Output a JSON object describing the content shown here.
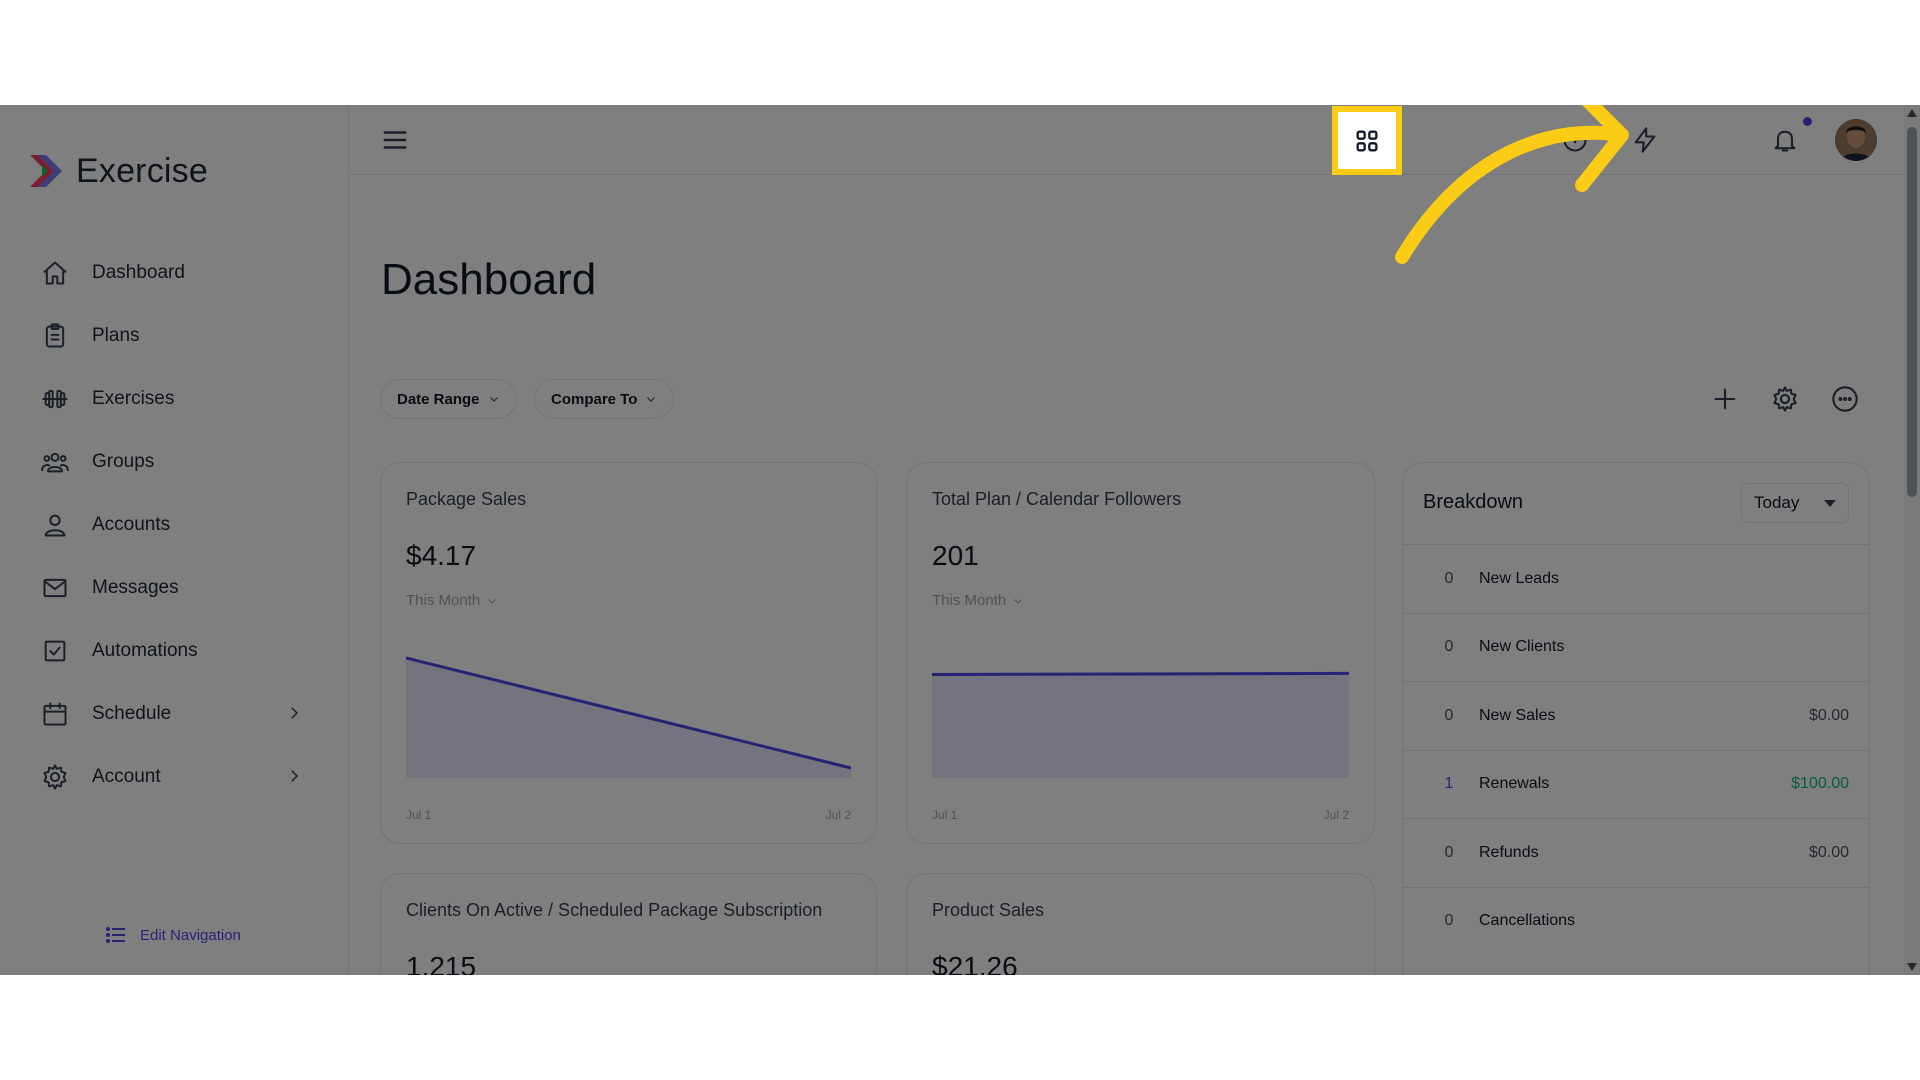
{
  "brand": {
    "name": "Exercise",
    "logo_icon": "exercise-logo-icon",
    "logo_colors": [
      "#f43f5e",
      "#6366f1",
      "#22c55e"
    ]
  },
  "sidebar": {
    "items": [
      {
        "label": "Dashboard",
        "icon": "home-icon"
      },
      {
        "label": "Plans",
        "icon": "clipboard-icon"
      },
      {
        "label": "Exercises",
        "icon": "dumbbell-icon"
      },
      {
        "label": "Groups",
        "icon": "users-icon"
      },
      {
        "label": "Accounts",
        "icon": "user-icon"
      },
      {
        "label": "Messages",
        "icon": "mail-icon"
      },
      {
        "label": "Automations",
        "icon": "checkbox-icon"
      },
      {
        "label": "Schedule",
        "icon": "calendar-icon"
      },
      {
        "label": "Account",
        "icon": "gear-icon"
      }
    ],
    "edit_navigation": "Edit Navigation"
  },
  "topbar": {
    "icons": [
      "menu-icon",
      "help-icon",
      "bolt-icon",
      "apps-grid-icon",
      "bell-icon",
      "avatar"
    ]
  },
  "page": {
    "title": "Dashboard"
  },
  "filters": {
    "date_range": "Date Range",
    "compare_to": "Compare To"
  },
  "cards": [
    {
      "title": "Package Sales",
      "value": "$4.17",
      "period": "This Month",
      "x_start": "Jul 1",
      "x_end": "Jul 2",
      "trend": [
        1.0,
        0.0
      ]
    },
    {
      "title": "Total Plan / Calendar Followers",
      "value": "201",
      "period": "This Month",
      "x_start": "Jul 1",
      "x_end": "Jul 2",
      "trend": [
        0.85,
        0.86
      ]
    },
    {
      "title": "Clients On Active / Scheduled Package Subscription",
      "value": "1,215"
    },
    {
      "title": "Product Sales",
      "value": "$21.26"
    }
  ],
  "breakdown": {
    "title": "Breakdown",
    "period": "Today",
    "rows": [
      {
        "count": "0",
        "label": "New Leads",
        "amount": ""
      },
      {
        "count": "0",
        "label": "New Clients",
        "amount": ""
      },
      {
        "count": "0",
        "label": "New Sales",
        "amount": "$0.00"
      },
      {
        "count": "1",
        "label": "Renewals",
        "amount": "$100.00"
      },
      {
        "count": "0",
        "label": "Refunds",
        "amount": "$0.00"
      },
      {
        "count": "0",
        "label": "Cancellations",
        "amount": ""
      }
    ]
  },
  "colors": {
    "accent": "#4f46e5",
    "highlight": "#facc15",
    "positive": "#10b981",
    "overlay": "rgba(0,0,0,0.5)"
  }
}
